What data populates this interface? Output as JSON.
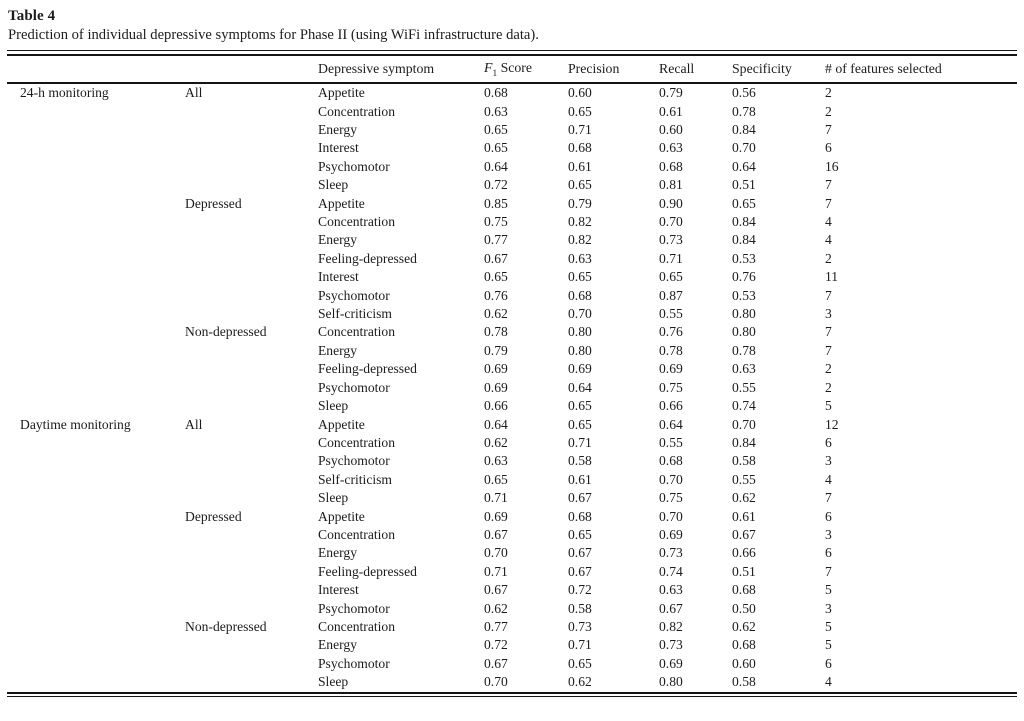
{
  "page": {
    "background_color": "#ffffff",
    "text_color": "#1c1c1c",
    "rule_color": "#151515"
  },
  "table": {
    "label": "Table 4",
    "caption": "Prediction of individual depressive symptoms for Phase II (using WiFi infrastructure data).",
    "columns": {
      "symptom": "Depressive symptom",
      "f1": {
        "italic": "F",
        "sub": "1",
        "rest": " Score"
      },
      "precision": "Precision",
      "recall": "Recall",
      "specificity": "Specificity",
      "features": "# of features selected"
    },
    "sections": [
      {
        "monitoring": "24-h monitoring",
        "groups": [
          {
            "label": "All",
            "rows": [
              [
                "Appetite",
                "0.68",
                "0.60",
                "0.79",
                "0.56",
                "2"
              ],
              [
                "Concentration",
                "0.63",
                "0.65",
                "0.61",
                "0.78",
                "2"
              ],
              [
                "Energy",
                "0.65",
                "0.71",
                "0.60",
                "0.84",
                "7"
              ],
              [
                "Interest",
                "0.65",
                "0.68",
                "0.63",
                "0.70",
                "6"
              ],
              [
                "Psychomotor",
                "0.64",
                "0.61",
                "0.68",
                "0.64",
                "16"
              ],
              [
                "Sleep",
                "0.72",
                "0.65",
                "0.81",
                "0.51",
                "7"
              ]
            ]
          },
          {
            "label": "Depressed",
            "rows": [
              [
                "Appetite",
                "0.85",
                "0.79",
                "0.90",
                "0.65",
                "7"
              ],
              [
                "Concentration",
                "0.75",
                "0.82",
                "0.70",
                "0.84",
                "4"
              ],
              [
                "Energy",
                "0.77",
                "0.82",
                "0.73",
                "0.84",
                "4"
              ],
              [
                "Feeling-depressed",
                "0.67",
                "0.63",
                "0.71",
                "0.53",
                "2"
              ],
              [
                "Interest",
                "0.65",
                "0.65",
                "0.65",
                "0.76",
                "11"
              ],
              [
                "Psychomotor",
                "0.76",
                "0.68",
                "0.87",
                "0.53",
                "7"
              ],
              [
                "Self-criticism",
                "0.62",
                "0.70",
                "0.55",
                "0.80",
                "3"
              ]
            ]
          },
          {
            "label": "Non-depressed",
            "rows": [
              [
                "Concentration",
                "0.78",
                "0.80",
                "0.76",
                "0.80",
                "7"
              ],
              [
                "Energy",
                "0.79",
                "0.80",
                "0.78",
                "0.78",
                "7"
              ],
              [
                "Feeling-depressed",
                "0.69",
                "0.69",
                "0.69",
                "0.63",
                "2"
              ],
              [
                "Psychomotor",
                "0.69",
                "0.64",
                "0.75",
                "0.55",
                "2"
              ],
              [
                "Sleep",
                "0.66",
                "0.65",
                "0.66",
                "0.74",
                "5"
              ]
            ]
          }
        ]
      },
      {
        "monitoring": "Daytime monitoring",
        "groups": [
          {
            "label": "All",
            "rows": [
              [
                "Appetite",
                "0.64",
                "0.65",
                "0.64",
                "0.70",
                "12"
              ],
              [
                "Concentration",
                "0.62",
                "0.71",
                "0.55",
                "0.84",
                "6"
              ],
              [
                "Psychomotor",
                "0.63",
                "0.58",
                "0.68",
                "0.58",
                "3"
              ],
              [
                "Self-criticism",
                "0.65",
                "0.61",
                "0.70",
                "0.55",
                "4"
              ],
              [
                "Sleep",
                "0.71",
                "0.67",
                "0.75",
                "0.62",
                "7"
              ]
            ]
          },
          {
            "label": "Depressed",
            "rows": [
              [
                "Appetite",
                "0.69",
                "0.68",
                "0.70",
                "0.61",
                "6"
              ],
              [
                "Concentration",
                "0.67",
                "0.65",
                "0.69",
                "0.67",
                "3"
              ],
              [
                "Energy",
                "0.70",
                "0.67",
                "0.73",
                "0.66",
                "6"
              ],
              [
                "Feeling-depressed",
                "0.71",
                "0.67",
                "0.74",
                "0.51",
                "7"
              ],
              [
                "Interest",
                "0.67",
                "0.72",
                "0.63",
                "0.68",
                "5"
              ],
              [
                "Psychomotor",
                "0.62",
                "0.58",
                "0.67",
                "0.50",
                "3"
              ]
            ]
          },
          {
            "label": "Non-depressed",
            "rows": [
              [
                "Concentration",
                "0.77",
                "0.73",
                "0.82",
                "0.62",
                "5"
              ],
              [
                "Energy",
                "0.72",
                "0.71",
                "0.73",
                "0.68",
                "5"
              ],
              [
                "Psychomotor",
                "0.67",
                "0.65",
                "0.69",
                "0.60",
                "6"
              ],
              [
                "Sleep",
                "0.70",
                "0.62",
                "0.80",
                "0.58",
                "4"
              ]
            ]
          }
        ]
      }
    ]
  }
}
